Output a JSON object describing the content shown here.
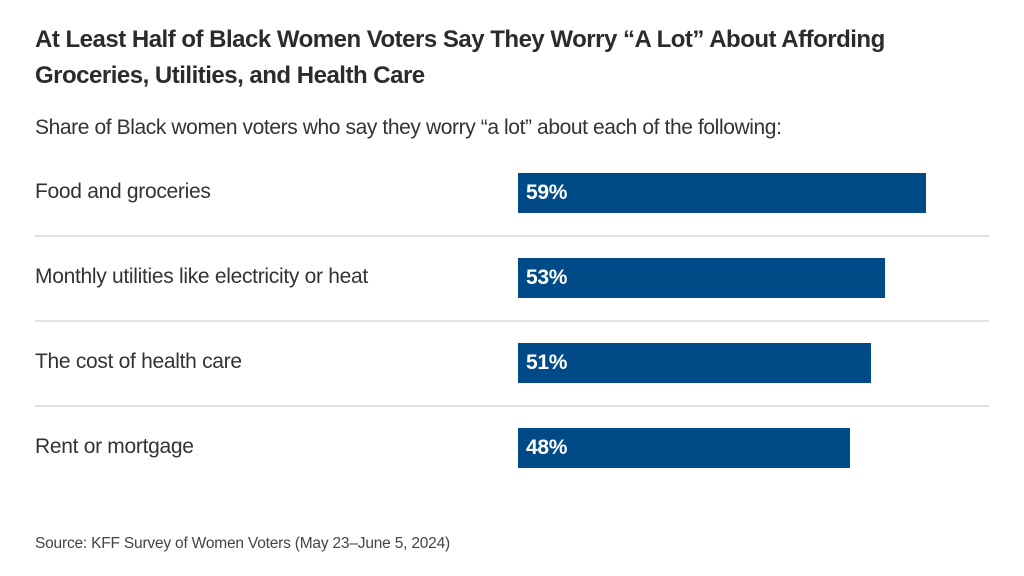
{
  "chart_data": {
    "type": "bar",
    "orientation": "horizontal",
    "title": "At Least Half of Black Women Voters Say They Worry “A Lot” About Affording Groceries, Utilities, and Health Care",
    "subtitle": "Share of Black women voters who say they worry “a lot” about each of the following:",
    "categories": [
      "Food and groceries",
      "Monthly utilities like electricity or heat",
      "The cost of health care",
      "Rent or mortgage"
    ],
    "values": [
      59,
      53,
      51,
      48
    ],
    "value_labels": [
      "59%",
      "53%",
      "51%",
      "48%"
    ],
    "unit": "%",
    "xlim": [
      0,
      100
    ],
    "xlabel": "",
    "ylabel": "",
    "grid": false,
    "legend": "none",
    "bar_color": "#004b87",
    "source": "Source: KFF Survey of Women Voters (May 23–June 5, 2024)"
  }
}
